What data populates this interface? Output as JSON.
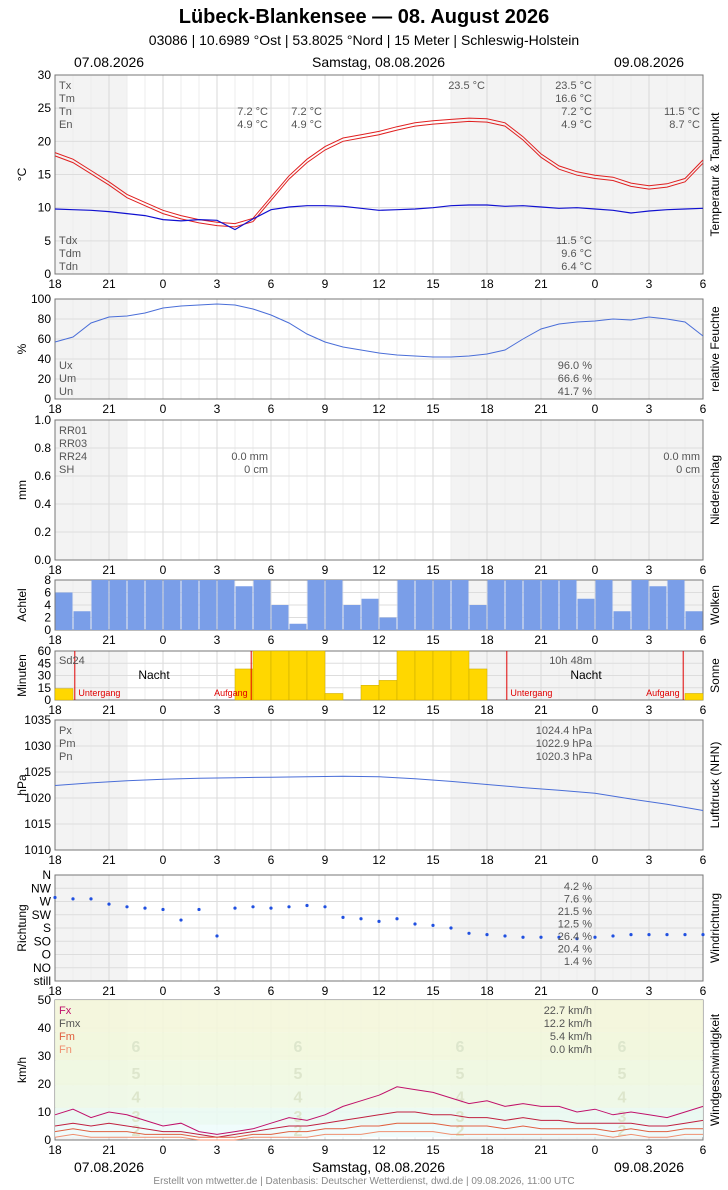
{
  "header": {
    "title": "Lübeck-Blankensee  —  08. August 2026",
    "subtitle": "03086  |  10.6989 °Ost  |  53.8025 °Nord  |  15 Meter  |  Schleswig-Holstein",
    "date_left": "07.08.2026",
    "date_center": "Samstag, 08.08.2026",
    "date_right": "09.08.2026"
  },
  "footer": "Erstellt von mtwetter.de | Datenbasis: Deutscher Wetterdienst, dwd.de | 09.08.2026, 11:00 UTC",
  "x_ticks": [
    "18",
    "21",
    "0",
    "3",
    "6",
    "9",
    "12",
    "15",
    "18",
    "21",
    "0",
    "3",
    "6"
  ],
  "colors": {
    "temp": "#e02020",
    "dew": "#1010d0",
    "hum": "#4a6ed8",
    "press": "#4a6ed8",
    "cloud": "#7a9ee8",
    "sun": "#ffd700",
    "fx": "#c0106a",
    "fmx": "#c02040",
    "fm": "#e06040",
    "fn": "#f09070"
  },
  "chart_data": [
    {
      "type": "line",
      "ylabel": "°C",
      "side_label": "Temperatur & Taupunkt",
      "ylim": [
        0,
        30
      ],
      "yticks": [
        "0",
        "5",
        "10",
        "15",
        "20",
        "25",
        "30"
      ],
      "x_hours": [
        18,
        19,
        20,
        21,
        22,
        23,
        24,
        25,
        26,
        27,
        28,
        29,
        30,
        31,
        32,
        33,
        34,
        35,
        36,
        37,
        38,
        39,
        40,
        41,
        42,
        43,
        44,
        45,
        46,
        47,
        48,
        49,
        50,
        51,
        52,
        53,
        54
      ],
      "series": [
        {
          "name": "Tx",
          "values": [
            18.3,
            17.3,
            15.6,
            13.9,
            12.0,
            10.8,
            9.6,
            8.8,
            8.2,
            7.8,
            7.6,
            8.4,
            11.6,
            14.8,
            17.3,
            19.2,
            20.5,
            21.0,
            21.5,
            22.2,
            22.8,
            23.1,
            23.3,
            23.5,
            23.4,
            22.8,
            20.7,
            18.1,
            16.3,
            15.4,
            14.9,
            14.6,
            13.7,
            13.3,
            13.6,
            14.4,
            17.2
          ]
        },
        {
          "name": "Tm",
          "values": [
            17.8,
            16.8,
            15.1,
            13.4,
            11.5,
            10.3,
            9.1,
            8.3,
            7.7,
            7.3,
            7.1,
            7.9,
            11.1,
            14.3,
            16.8,
            18.7,
            20.0,
            20.5,
            21.0,
            21.7,
            22.3,
            22.6,
            22.8,
            23.0,
            22.9,
            22.3,
            20.2,
            17.6,
            15.8,
            14.9,
            14.4,
            14.1,
            13.2,
            12.8,
            13.1,
            13.9,
            16.7
          ]
        },
        {
          "name": "Td",
          "values": [
            9.8,
            9.7,
            9.6,
            9.4,
            9.1,
            8.8,
            8.2,
            8.0,
            8.2,
            8.1,
            6.7,
            8.3,
            9.7,
            10.1,
            10.3,
            10.3,
            10.2,
            9.9,
            9.6,
            9.7,
            9.8,
            10.0,
            10.3,
            10.4,
            10.4,
            10.2,
            10.3,
            10.1,
            9.9,
            10.0,
            9.8,
            9.6,
            9.2,
            9.5,
            9.7,
            9.8,
            9.9
          ]
        }
      ],
      "labels_left": [
        "Tx",
        "Tm",
        "Tn",
        "En",
        "Tdx",
        "Tdm",
        "Tdn"
      ],
      "annot_nights": [
        "7.2 °C",
        "4.9 °C",
        "7.2 °C",
        "4.9 °C"
      ],
      "annot_tx_mid": "23.5 °C",
      "annot_right": [
        "23.5 °C",
        "16.6 °C",
        "7.2 °C",
        "4.9 °C"
      ],
      "annot_far_right": [
        "11.5 °C",
        "8.7 °C"
      ],
      "annot_dew": [
        "11.5 °C",
        "9.6 °C",
        "6.4 °C"
      ]
    },
    {
      "type": "line",
      "ylabel": "%",
      "side_label": "relative Feuchte",
      "ylim": [
        0,
        100
      ],
      "yticks": [
        "0",
        "20",
        "40",
        "60",
        "80",
        "100"
      ],
      "x_hours": [
        18,
        19,
        20,
        21,
        22,
        23,
        24,
        25,
        26,
        27,
        28,
        29,
        30,
        31,
        32,
        33,
        34,
        35,
        36,
        37,
        38,
        39,
        40,
        41,
        42,
        43,
        44,
        45,
        46,
        47,
        48,
        49,
        50,
        51,
        52,
        53,
        54
      ],
      "series": [
        {
          "name": "U",
          "values": [
            57,
            62,
            76,
            82,
            83,
            86,
            91,
            93,
            94,
            95,
            94,
            90,
            84,
            76,
            65,
            57,
            52,
            49,
            46,
            44,
            43,
            42,
            42,
            43,
            45,
            49,
            60,
            70,
            75,
            77,
            78,
            80,
            79,
            82,
            80,
            77,
            63
          ]
        }
      ],
      "labels_left": [
        "Ux",
        "Um",
        "Un"
      ],
      "annot_right": [
        "96.0 %",
        "66.6 %",
        "41.7 %"
      ]
    },
    {
      "type": "bar",
      "ylabel": "mm",
      "side_label": "Niederschlag",
      "ylim": [
        0,
        1.0
      ],
      "yticks": [
        "0.0",
        "0.2",
        "0.4",
        "0.6",
        "0.8",
        "1.0"
      ],
      "values": [],
      "labels_left": [
        "RR01",
        "RR03",
        "RR24",
        "SH"
      ],
      "annot_mid": [
        "0.0 mm",
        "0 cm"
      ],
      "annot_right": [
        "0.0 mm",
        "0 cm"
      ]
    },
    {
      "type": "bar",
      "ylabel": "Achtel",
      "side_label": "Wolken",
      "ylim": [
        0,
        8
      ],
      "yticks": [
        "0",
        "2",
        "4",
        "6",
        "8"
      ],
      "x_hours": [
        18,
        19,
        20,
        21,
        22,
        23,
        24,
        25,
        26,
        27,
        28,
        29,
        30,
        31,
        32,
        33,
        34,
        35,
        36,
        37,
        38,
        39,
        40,
        41,
        42,
        43,
        44,
        45,
        46,
        47,
        48,
        49,
        50,
        51,
        52,
        53,
        54
      ],
      "values": [
        6,
        3,
        8,
        8,
        8,
        8,
        8,
        8,
        8,
        8,
        7,
        8,
        4,
        1,
        8,
        8,
        4,
        5,
        2,
        8,
        8,
        8,
        8,
        4,
        8,
        8,
        8,
        8,
        8,
        5,
        8,
        3,
        8,
        7,
        8,
        3,
        8
      ]
    },
    {
      "type": "bar",
      "ylabel": "Minuten",
      "side_label": "Sonne",
      "ylim": [
        0,
        60
      ],
      "yticks": [
        "0",
        "15",
        "30",
        "45",
        "60"
      ],
      "x_hours": [
        18,
        19,
        20,
        21,
        22,
        23,
        24,
        25,
        26,
        27,
        28,
        29,
        30,
        31,
        32,
        33,
        34,
        35,
        36,
        37,
        38,
        39,
        40,
        41,
        42,
        43,
        44,
        45,
        46,
        47,
        48,
        49,
        50,
        51,
        52,
        53,
        54
      ],
      "values": [
        14,
        0,
        0,
        0,
        0,
        0,
        0,
        0,
        0,
        0,
        38,
        60,
        60,
        60,
        60,
        8,
        0,
        18,
        24,
        60,
        60,
        60,
        60,
        38,
        0,
        0,
        0,
        0,
        0,
        0,
        0,
        0,
        0,
        0,
        0,
        8,
        60
      ],
      "labels": {
        "sd24": "Sd24",
        "sd_value": "10h 48m",
        "night": "Nacht",
        "sunset": "Untergang",
        "sunrise": "Aufgang"
      }
    },
    {
      "type": "line",
      "ylabel": "hPa",
      "side_label": "Luftdruck (NHN)",
      "ylim": [
        1010,
        1035
      ],
      "yticks": [
        "1010",
        "1015",
        "1020",
        "1025",
        "1030",
        "1035"
      ],
      "x_hours": [
        18,
        20,
        22,
        24,
        26,
        28,
        30,
        32,
        34,
        36,
        38,
        40,
        42,
        44,
        46,
        48,
        50,
        52,
        54
      ],
      "series": [
        {
          "name": "P",
          "values": [
            1022.4,
            1022.9,
            1023.3,
            1023.6,
            1023.8,
            1023.9,
            1024.0,
            1024.1,
            1024.2,
            1024.1,
            1023.7,
            1023.2,
            1022.6,
            1022.0,
            1021.5,
            1020.9,
            1019.8,
            1018.8,
            1017.6
          ]
        }
      ],
      "labels_left": [
        "Px",
        "Pm",
        "Pn"
      ],
      "annot_right": [
        "1024.4 hPa",
        "1022.9 hPa",
        "1020.3 hPa"
      ]
    },
    {
      "type": "scatter",
      "ylabel": "Richtung",
      "side_label": "Windrichtung",
      "yticks": [
        "still",
        "NO",
        "O",
        "SO",
        "S",
        "SW",
        "W",
        "NW",
        "N"
      ],
      "x_hours": [
        18,
        19,
        20,
        21,
        22,
        23,
        24,
        25,
        26,
        27,
        28,
        29,
        30,
        31,
        32,
        33,
        34,
        35,
        36,
        37,
        38,
        39,
        40,
        41,
        42,
        43,
        44,
        45,
        46,
        47,
        48,
        49,
        50,
        51,
        52,
        53,
        54
      ],
      "values": [
        6.3,
        6.2,
        6.2,
        5.8,
        5.6,
        5.5,
        5.4,
        4.6,
        5.4,
        3.4,
        5.5,
        5.6,
        5.5,
        5.6,
        5.7,
        5.6,
        4.8,
        4.7,
        4.5,
        4.7,
        4.3,
        4.2,
        4.0,
        3.6,
        3.5,
        3.4,
        3.3,
        3.3,
        3.3,
        3.2,
        3.3,
        3.4,
        3.5,
        3.5,
        3.5,
        3.5,
        3.5
      ],
      "annot_right": [
        "4.2 %",
        "7.6 %",
        "21.5 %",
        "12.5 %",
        "26.4 %",
        "20.4 %",
        "1.4 %"
      ]
    },
    {
      "type": "line",
      "ylabel": "km/h",
      "side_label": "Windgeschwindigkeit",
      "ylim": [
        0,
        50
      ],
      "yticks": [
        "0",
        "10",
        "20",
        "30",
        "40",
        "50"
      ],
      "beaufort": [
        "2",
        "3",
        "4",
        "5",
        "6"
      ],
      "x_hours": [
        18,
        19,
        20,
        21,
        22,
        23,
        24,
        25,
        26,
        27,
        28,
        29,
        30,
        31,
        32,
        33,
        34,
        35,
        36,
        37,
        38,
        39,
        40,
        41,
        42,
        43,
        44,
        45,
        46,
        47,
        48,
        49,
        50,
        51,
        52,
        53,
        54
      ],
      "series": [
        {
          "name": "Fx",
          "values": [
            9,
            11,
            8,
            10,
            9,
            7,
            5,
            6,
            3,
            2,
            3,
            4,
            6,
            8,
            7,
            9,
            12,
            14,
            16,
            19,
            18,
            17,
            15,
            13,
            14,
            12,
            13,
            12,
            12,
            10,
            11,
            9,
            10,
            9,
            8,
            10,
            12
          ]
        },
        {
          "name": "Fmx",
          "values": [
            5,
            6,
            5,
            6,
            5,
            4,
            3,
            3,
            2,
            1,
            2,
            3,
            4,
            5,
            5,
            6,
            7,
            8,
            9,
            10,
            10,
            9,
            9,
            8,
            8,
            7,
            8,
            7,
            7,
            6,
            6,
            6,
            6,
            5,
            5,
            6,
            7
          ]
        },
        {
          "name": "Fm",
          "values": [
            3,
            4,
            3,
            3,
            3,
            2,
            2,
            2,
            1,
            1,
            1,
            2,
            2,
            3,
            3,
            4,
            4,
            5,
            5,
            6,
            6,
            6,
            5,
            5,
            5,
            4,
            5,
            4,
            4,
            4,
            4,
            3,
            4,
            3,
            3,
            4,
            4
          ]
        },
        {
          "name": "Fn",
          "values": [
            1,
            2,
            1,
            1,
            1,
            1,
            1,
            1,
            0,
            0,
            0,
            1,
            1,
            1,
            1,
            2,
            2,
            2,
            3,
            3,
            3,
            3,
            2,
            2,
            2,
            2,
            2,
            2,
            2,
            2,
            2,
            1,
            2,
            1,
            1,
            2,
            2
          ]
        }
      ],
      "labels_left": [
        "Fx",
        "Fmx",
        "Fm",
        "Fn"
      ],
      "annot_right": [
        "22.7 km/h",
        "12.2 km/h",
        "5.4 km/h",
        "0.0 km/h"
      ]
    }
  ]
}
